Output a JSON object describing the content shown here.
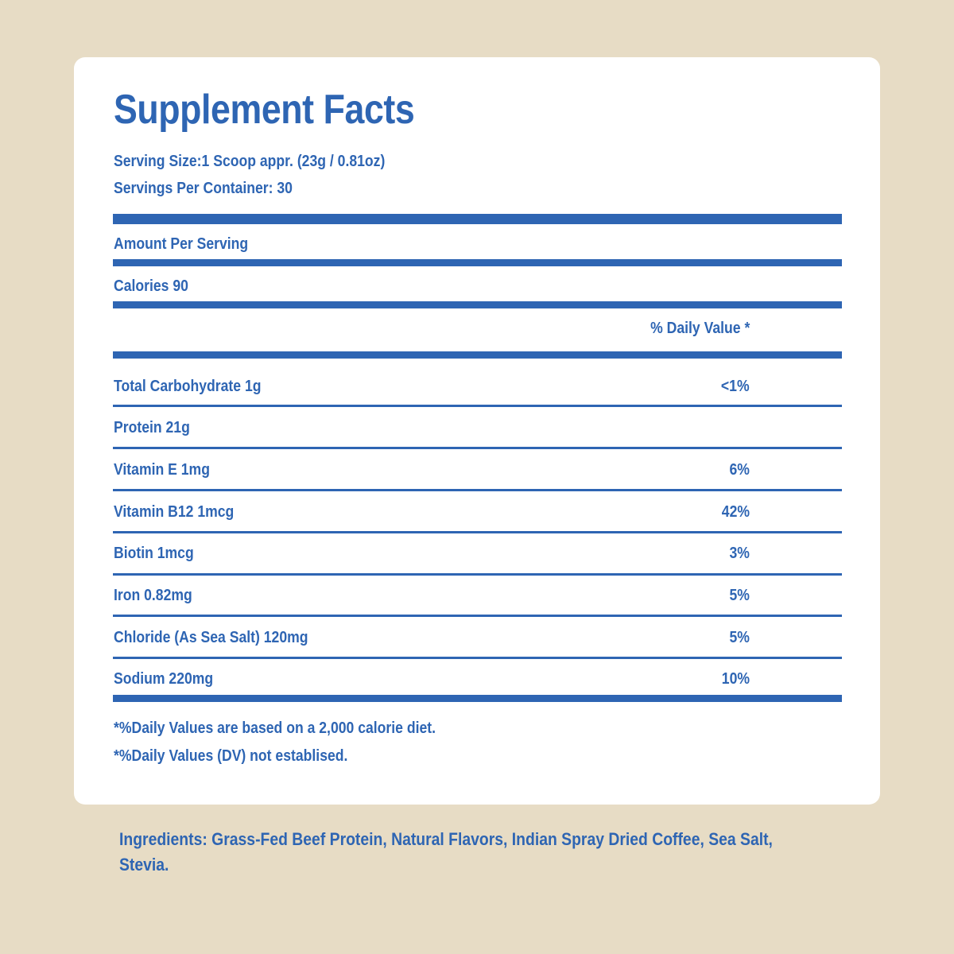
{
  "label": {
    "title": "Supplement Facts",
    "serving_size": "Serving Size:1 Scoop appr. (23g / 0.81oz)",
    "servings_per_container": "Servings Per Container: 30",
    "amount_per_serving": "Amount Per Serving",
    "calories": "Calories 90",
    "daily_value_header": "% Daily Value *",
    "nutrients": [
      {
        "name": "Total Carbohydrate 1g",
        "dv": "<1%"
      },
      {
        "name": "Protein 21g",
        "dv": ""
      },
      {
        "name": "Vitamin E 1mg",
        "dv": "6%"
      },
      {
        "name": "Vitamin B12 1mcg",
        "dv": "42%"
      },
      {
        "name": "Biotin 1mcg",
        "dv": "3%"
      },
      {
        "name": "Iron 0.82mg",
        "dv": "5%"
      },
      {
        "name": "Chloride (As Sea Salt) 120mg",
        "dv": "5%"
      },
      {
        "name": "Sodium 220mg",
        "dv": "10%"
      }
    ],
    "footnotes": [
      "*%Daily Values are based on a 2,000 calorie diet.",
      "*%Daily Values (DV) not establised."
    ]
  },
  "ingredients": "Ingredients: Grass-Fed Beef Protein, Natural Flavors, Indian Spray Dried Coffee, Sea Salt, Stevia.",
  "colors": {
    "background": "#e7dcc5",
    "card": "#ffffff",
    "accent": "#2e65b3"
  }
}
